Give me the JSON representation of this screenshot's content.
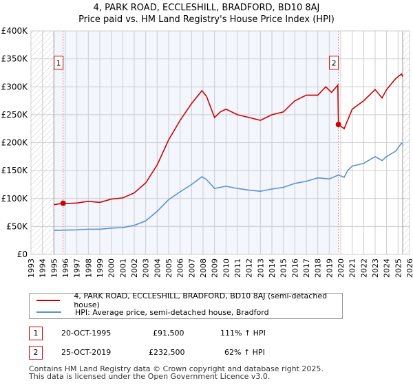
{
  "chart_data": {
    "type": "line",
    "title": "4, PARK ROAD, ECCLESHILL, BRADFORD, BD10 8AJ",
    "subtitle": "Price paid vs. HM Land Registry's House Price Index (HPI)",
    "xlim": [
      1993,
      2026
    ],
    "ylim": [
      0,
      400000
    ],
    "x_ticks": [
      "1993",
      "1994",
      "1995",
      "1996",
      "1997",
      "1998",
      "1999",
      "2000",
      "2001",
      "2002",
      "2003",
      "2004",
      "2005",
      "2006",
      "2007",
      "2008",
      "2009",
      "2010",
      "2011",
      "2012",
      "2013",
      "2014",
      "2015",
      "2016",
      "2017",
      "2018",
      "2019",
      "2020",
      "2021",
      "2022",
      "2023",
      "2024",
      "2025",
      "2026"
    ],
    "y_ticks": [
      {
        "v": 0,
        "label": "£0"
      },
      {
        "v": 50000,
        "label": "£50K"
      },
      {
        "v": 100000,
        "label": "£100K"
      },
      {
        "v": 150000,
        "label": "£150K"
      },
      {
        "v": 200000,
        "label": "£200K"
      },
      {
        "v": 250000,
        "label": "£250K"
      },
      {
        "v": 300000,
        "label": "£300K"
      },
      {
        "v": 350000,
        "label": "£350K"
      },
      {
        "v": 400000,
        "label": "£400K"
      }
    ],
    "grid": true,
    "series": [
      {
        "name": "4, PARK ROAD, ECCLESHILL, BRADFORD, BD10 8AJ (semi-detached house)",
        "color": "#cc0000",
        "x": [
          1995.0,
          1995.8,
          1996,
          1997,
          1998,
          1999,
          2000,
          2001,
          2002,
          2003,
          2004,
          2005,
          2006,
          2007,
          2007.9,
          2008.3,
          2009,
          2009.5,
          2010,
          2011,
          2012,
          2013,
          2014,
          2015,
          2016,
          2017,
          2018,
          2018.7,
          2019.2,
          2019.75,
          2019.8,
          2020.3,
          2021,
          2022,
          2023,
          2023.6,
          2024,
          2024.8,
          2025.3,
          2025.4
        ],
        "y": [
          89000,
          91500,
          91000,
          92000,
          95000,
          93000,
          99000,
          101000,
          110000,
          128000,
          160000,
          205000,
          240000,
          270000,
          293000,
          283000,
          245000,
          255000,
          260000,
          250000,
          245000,
          240000,
          250000,
          255000,
          275000,
          285000,
          285000,
          300000,
          290000,
          303000,
          232500,
          225000,
          260000,
          275000,
          295000,
          280000,
          295000,
          315000,
          323000,
          318000
        ]
      },
      {
        "name": "HPI: Average price, semi-detached house, Bradford",
        "color": "#5b8fd4",
        "x": [
          1995,
          1996,
          1997,
          1998,
          1999,
          2000,
          2001,
          2002,
          2003,
          2004,
          2005,
          2006,
          2007,
          2007.9,
          2008.3,
          2009,
          2010,
          2011,
          2012,
          2013,
          2014,
          2015,
          2016,
          2017,
          2018,
          2019,
          2019.8,
          2020.3,
          2020.6,
          2021,
          2022,
          2023,
          2023.6,
          2024,
          2024.8,
          2025.3,
          2025.4
        ],
        "y": [
          43000,
          43500,
          44000,
          45000,
          45000,
          47000,
          48000,
          52000,
          60000,
          77000,
          98000,
          112000,
          125000,
          139000,
          134000,
          118000,
          122000,
          118000,
          115000,
          113000,
          117000,
          120000,
          127000,
          131000,
          137000,
          135000,
          142000,
          138000,
          150000,
          158000,
          163000,
          175000,
          168000,
          175000,
          185000,
          199000,
          197000
        ]
      }
    ],
    "annotations": [
      {
        "label": "1",
        "x": 1995.8,
        "y": 91500
      },
      {
        "label": "2",
        "x": 2019.8,
        "y": 232500
      }
    ],
    "legend": "below"
  },
  "transactions": [
    {
      "num": "1",
      "date": "20-OCT-1995",
      "price": "£91,500",
      "hpi": "111% ↑ HPI"
    },
    {
      "num": "2",
      "date": "25-OCT-2019",
      "price": "£232,500",
      "hpi": "62% ↑ HPI"
    }
  ],
  "footer": [
    "Contains HM Land Registry data © Crown copyright and database right 2025.",
    "This data is licensed under the Open Government Licence v3.0."
  ]
}
